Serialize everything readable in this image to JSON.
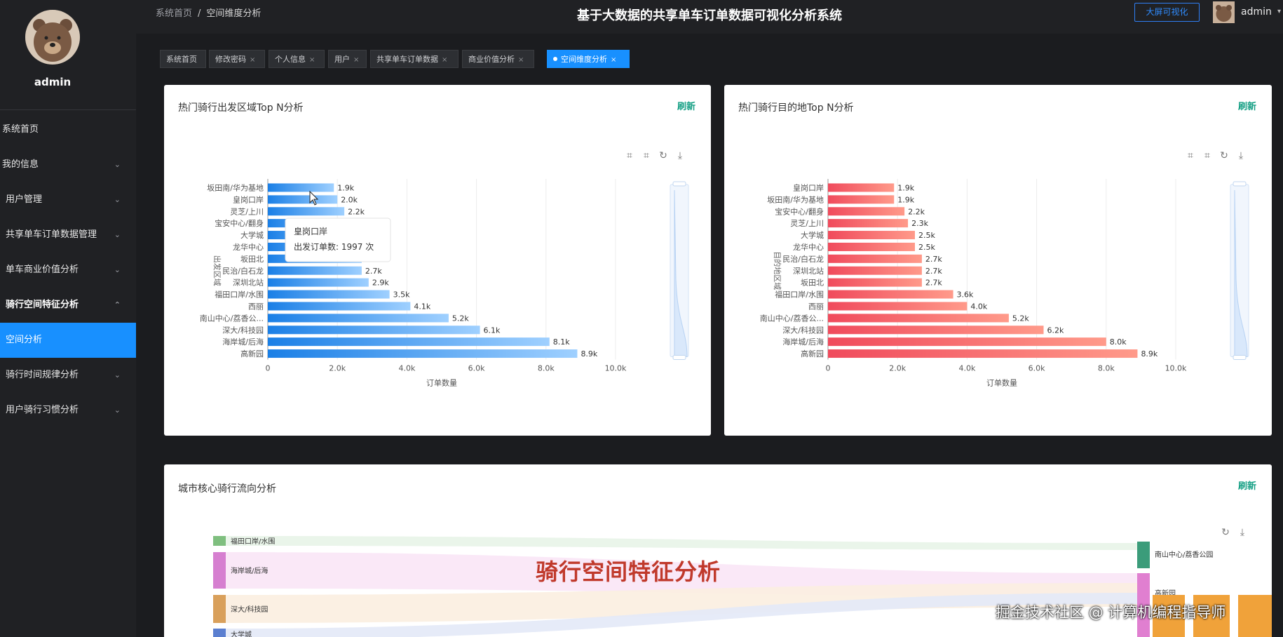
{
  "header": {
    "breadcrumb_home": "系统首页",
    "breadcrumb_sep": "/",
    "breadcrumb_current": "空间维度分析",
    "title": "基于大数据的共享单车订单数据可视化分析系统",
    "bigscreen_button": "大屏可视化",
    "username": "admin"
  },
  "sidebar": {
    "username": "admin",
    "items": [
      {
        "label": "系统首页",
        "chevron": ""
      },
      {
        "label": "我的信息",
        "chevron": "⌄"
      },
      {
        "label": "用户管理",
        "chevron": "⌄"
      },
      {
        "label": "共享单车订单数据管理",
        "chevron": "⌄"
      },
      {
        "label": "单车商业价值分析",
        "chevron": "⌄"
      },
      {
        "label": "骑行空间特征分析",
        "chevron": "⌃"
      },
      {
        "label": "空间分析",
        "chevron": ""
      },
      {
        "label": "骑行时间规律分析",
        "chevron": "⌄"
      },
      {
        "label": "用户骑行习惯分析",
        "chevron": "⌄"
      }
    ]
  },
  "tabs": [
    {
      "label": "系统首页",
      "close": ""
    },
    {
      "label": "修改密码",
      "close": "×"
    },
    {
      "label": "个人信息",
      "close": "×"
    },
    {
      "label": "用户",
      "close": "×"
    },
    {
      "label": "共享单车订单数据",
      "close": "×"
    },
    {
      "label": "商业价值分析",
      "close": "×"
    },
    {
      "label": "空间维度分析",
      "close": "×"
    }
  ],
  "panels": {
    "refresh_label": "刷新",
    "start": {
      "title": "热门骑行出发区域Top N分析"
    },
    "dest": {
      "title": "热门骑行目的地Top N分析"
    },
    "flow": {
      "title": "城市核心骑行流向分析"
    }
  },
  "tooltip": {
    "title": "皇岗口岸",
    "line": "出发订单数: 1997 次"
  },
  "overlay": {
    "caption": "骑行空间特征分析",
    "credit": "掘金技术社区 @ 计算机编程指导师"
  },
  "chart_data": [
    {
      "type": "bar",
      "orientation": "horizontal",
      "title": "热门骑行出发区域Top N分析",
      "xlabel": "订单数量",
      "ylabel": "出发区域",
      "xlim": [
        0,
        10000
      ],
      "xticks": [
        "0",
        "2.0k",
        "4.0k",
        "6.0k",
        "8.0k",
        "10.0k"
      ],
      "color_start": "#1a7fe6",
      "color_end": "#9fd0ff",
      "categories": [
        "坂田南/华为基地",
        "皇岗口岸",
        "灵芝/上川",
        "宝安中心/翻身",
        "大学城",
        "龙华中心",
        "坂田北",
        "民治/白石龙",
        "深圳北站",
        "福田口岸/水围",
        "西丽",
        "南山中心/荔香公...",
        "深大/科技园",
        "海岸城/后海",
        "高新园"
      ],
      "values": [
        1900,
        2000,
        2200,
        2400,
        2500,
        2600,
        2700,
        2700,
        2900,
        3500,
        4100,
        5200,
        6100,
        8100,
        8900
      ],
      "labels": [
        "1.9k",
        "2.0k",
        "2.2k",
        "",
        "",
        "",
        "2.7k",
        "2.7k",
        "2.9k",
        "3.5k",
        "4.1k",
        "5.2k",
        "6.1k",
        "8.1k",
        "8.9k"
      ]
    },
    {
      "type": "bar",
      "orientation": "horizontal",
      "title": "热门骑行目的地Top N分析",
      "xlabel": "订单数量",
      "ylabel": "目的地区域",
      "xlim": [
        0,
        10000
      ],
      "xticks": [
        "0",
        "2.0k",
        "4.0k",
        "6.0k",
        "8.0k",
        "10.0k"
      ],
      "color_start": "#f04a5c",
      "color_end": "#ff9a8a",
      "categories": [
        "皇岗口岸",
        "坂田南/华为基地",
        "宝安中心/翻身",
        "灵芝/上川",
        "大学城",
        "龙华中心",
        "民治/白石龙",
        "深圳北站",
        "坂田北",
        "福田口岸/水围",
        "西丽",
        "南山中心/荔香公...",
        "深大/科技园",
        "海岸城/后海",
        "高新园"
      ],
      "values": [
        1900,
        1900,
        2200,
        2300,
        2500,
        2500,
        2700,
        2700,
        2700,
        3600,
        4000,
        5200,
        6200,
        8000,
        8900
      ],
      "labels": [
        "1.9k",
        "1.9k",
        "2.2k",
        "2.3k",
        "2.5k",
        "2.5k",
        "2.7k",
        "2.7k",
        "2.7k",
        "3.6k",
        "4.0k",
        "5.2k",
        "6.2k",
        "8.0k",
        "8.9k"
      ]
    },
    {
      "type": "sankey",
      "title": "城市核心骑行流向分析",
      "sources": [
        {
          "name": "福田口岸/水围",
          "color": "#7fbf7f"
        },
        {
          "name": "海岸城/后海",
          "color": "#d67fd0"
        },
        {
          "name": "深大/科技园",
          "color": "#d9a05b"
        },
        {
          "name": "大学城",
          "color": "#5b7fd0"
        }
      ],
      "targets": [
        {
          "name": "南山中心/荔香公园",
          "color": "#3b9c7a"
        },
        {
          "name": "高新园",
          "color": "#e07fd0"
        }
      ]
    }
  ]
}
